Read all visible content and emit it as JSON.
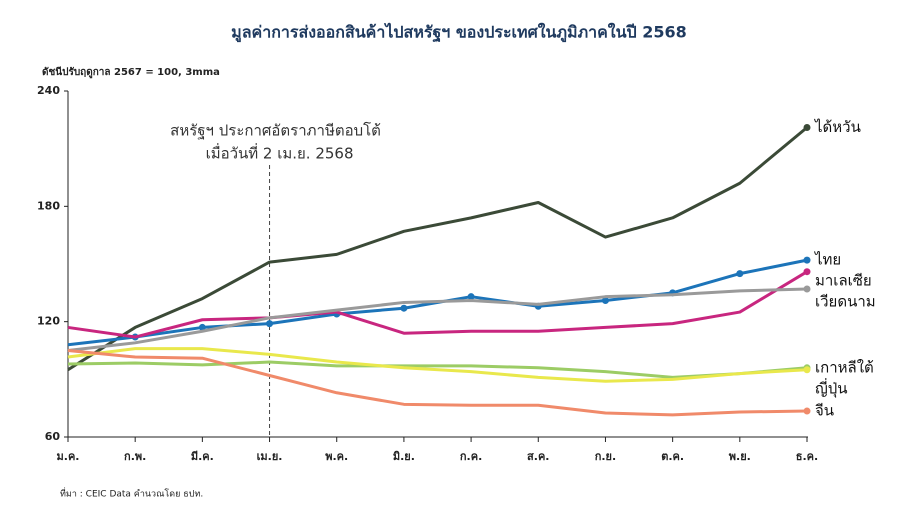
{
  "chart_data": {
    "type": "line",
    "title": "มูลค่าการส่งออกสินค้าไปสหรัฐฯ ของประเทศในภูมิภาคในปี 2568",
    "y_label": "ดัชนีปรับฤดูกาล 2567 = 100, 3mma",
    "source": "ที่มา : CEIC Data คำนวณโดย ธปท.",
    "annotation": {
      "lines": [
        "สหรัฐฯ ประกาศอัตราภาษีตอบโต้",
        "เมื่อวันที่ 2 เม.ย. 2568"
      ],
      "at": "เม.ย."
    },
    "categories": [
      "ม.ค.",
      "ก.พ.",
      "มี.ค.",
      "เม.ย.",
      "พ.ค.",
      "มิ.ย.",
      "ก.ค.",
      "ส.ค.",
      "ก.ย.",
      "ต.ค.",
      "พ.ย.",
      "ธ.ค."
    ],
    "ylim": [
      60,
      240
    ],
    "yticks": [
      60,
      120,
      180,
      240
    ],
    "series": [
      {
        "name": "ได้หวัน",
        "color": "#3b4a37",
        "values": [
          95,
          117,
          132,
          151,
          155,
          167,
          174,
          182,
          164,
          174,
          192,
          221
        ]
      },
      {
        "name": "ไทย",
        "color": "#1c74b9",
        "markers": true,
        "values": [
          108,
          112,
          117,
          119,
          124,
          127,
          133,
          128,
          131,
          135,
          145,
          152
        ]
      },
      {
        "name": "มาเลเซีย",
        "color": "#c8267f",
        "values": [
          117,
          112,
          121,
          122,
          125,
          114,
          115,
          115,
          117,
          119,
          125,
          146
        ]
      },
      {
        "name": "เวียดนาม",
        "color": "#9a9a9a",
        "values": [
          105,
          109,
          115,
          122,
          126,
          130,
          131,
          129,
          133,
          134,
          136,
          137
        ]
      },
      {
        "name": "เกาหลีใต้",
        "color": "#9ccc65",
        "values": [
          98,
          98.5,
          97.5,
          99,
          97,
          97,
          97,
          96,
          94,
          91,
          93,
          96
        ]
      },
      {
        "name": "ญี่ปุ่น",
        "color": "#e9e84c",
        "values": [
          101.6,
          106,
          106,
          103,
          99,
          96,
          94,
          91,
          89,
          90,
          93,
          95
        ]
      },
      {
        "name": "จีน",
        "color": "#f08a6a",
        "values": [
          105,
          101.6,
          101,
          92,
          83,
          77,
          76.5,
          76.5,
          72.5,
          71.5,
          73,
          73.5
        ]
      }
    ]
  }
}
